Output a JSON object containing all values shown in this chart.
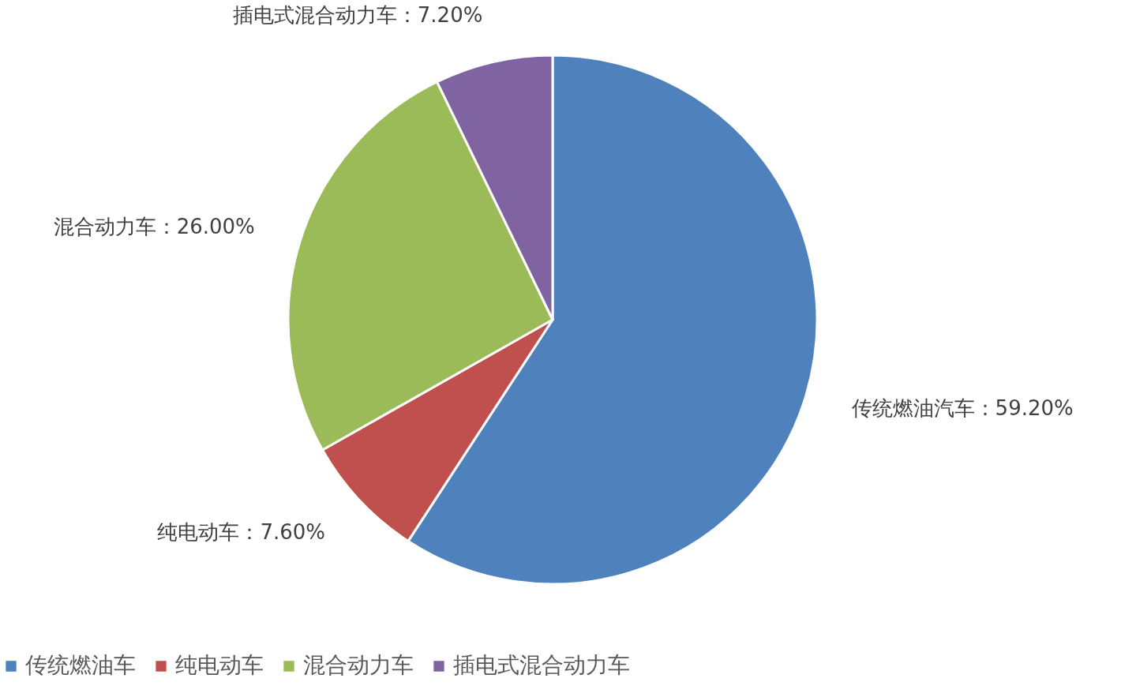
{
  "chart_data": {
    "type": "pie",
    "categories": [
      "传统燃油车",
      "纯电动车",
      "混合动力车",
      "插电式混合动力车"
    ],
    "values": [
      59.2,
      7.6,
      26.0,
      7.2
    ],
    "colors": [
      "#4f81bd",
      "#c0504d",
      "#9bbb59",
      "#8064a2"
    ],
    "value_labels": [
      "传统燃油汽车：59.20%",
      "纯电动车：7.60%",
      "混合动力车：26.00%",
      "插电式混合动力车：7.20%"
    ],
    "legend": "bottom"
  }
}
